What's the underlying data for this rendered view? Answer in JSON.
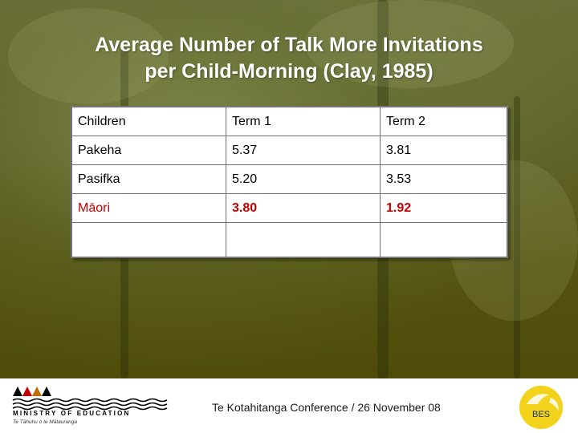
{
  "slide": {
    "title_line1": "Average Number of Talk More Invitations",
    "title_line2": "per Child-Morning (Clay, 1985)"
  },
  "table": {
    "headers": [
      "Children",
      "Term 1",
      "Term 2"
    ],
    "rows": [
      [
        "Pakeha",
        "5.37",
        "3.81"
      ],
      [
        "Pasifka",
        "5.20",
        "3.53"
      ],
      [
        "Māori",
        "3.80",
        "1.92"
      ]
    ]
  },
  "footer": {
    "ministry_label": "MINISTRY OF EDUCATION",
    "ministry_sub": "Te Tāhuhu o te Mātauranga",
    "conference_text": "Te Kotahitanga Conference / 26 November 08",
    "bes_label": "BES"
  },
  "colors": {
    "background_olive": "#5b5d22",
    "highlight_red": "#c00000",
    "bes_yellow": "#f2d21a"
  }
}
